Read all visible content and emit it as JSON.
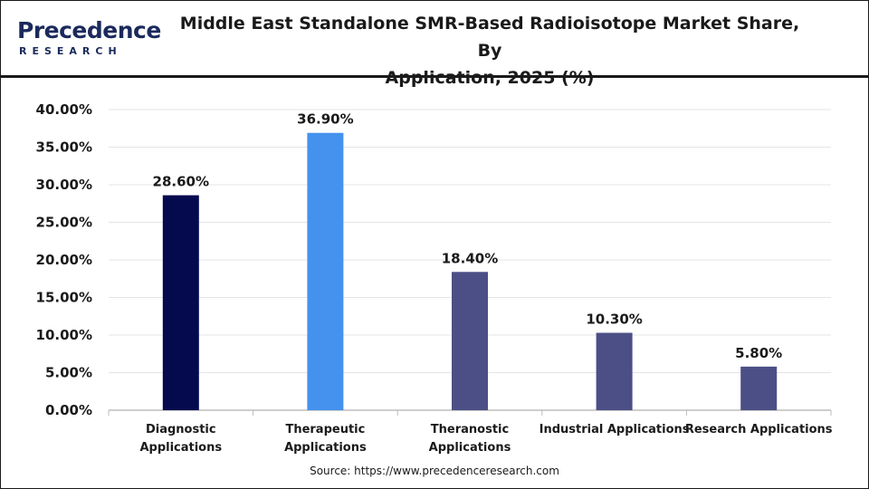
{
  "header": {
    "logo_brand": "Precedence",
    "logo_sub": "RESEARCH",
    "title_line1": "Middle East Standalone SMR-Based Radioisotope Market Share, By",
    "title_line2": "Application, 2025 (%)"
  },
  "source": "Source: https://www.precedenceresearch.com",
  "colors": {
    "diagnostic": "#050a4f",
    "therapeutic": "#4492ee",
    "others": "#4b4f85",
    "grid": "#e4e4e4"
  },
  "chart_data": {
    "type": "bar",
    "title": "Middle East Standalone SMR-Based Radioisotope Market Share, By Application, 2025 (%)",
    "xlabel": "",
    "ylabel": "",
    "ylim": [
      0,
      40
    ],
    "yticks": [
      "0.00%",
      "5.00%",
      "10.00%",
      "15.00%",
      "20.00%",
      "25.00%",
      "30.00%",
      "35.00%",
      "40.00%"
    ],
    "grid": true,
    "categories": [
      [
        "Diagnostic",
        "Applications"
      ],
      [
        "Therapeutic",
        "Applications"
      ],
      [
        "Theranostic",
        "Applications"
      ],
      [
        "Industrial Applications"
      ],
      [
        "Research Applications"
      ]
    ],
    "values": [
      28.6,
      36.9,
      18.4,
      10.3,
      5.8
    ],
    "data_labels": [
      "28.60%",
      "36.90%",
      "18.40%",
      "10.30%",
      "5.80%"
    ],
    "bar_colors": [
      "#050a4f",
      "#4492ee",
      "#4b4f85",
      "#4b4f85",
      "#4b4f85"
    ]
  }
}
